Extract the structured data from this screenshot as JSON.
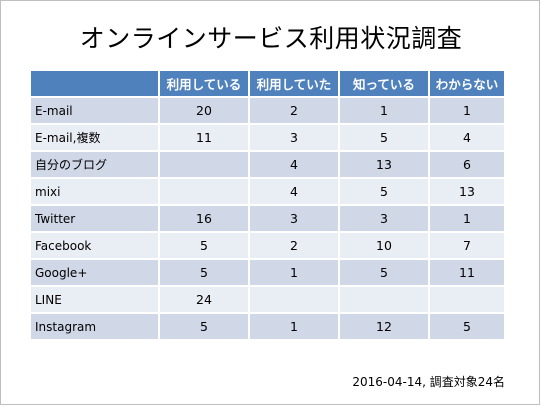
{
  "title": "オンラインサービス利用状況調査",
  "table": {
    "headers": [
      "",
      "利用している",
      "利用していた",
      "知っている",
      "わからない"
    ],
    "rows": [
      {
        "label": "E-mail",
        "cells": [
          "20",
          "2",
          "1",
          "1"
        ]
      },
      {
        "label": "E-mail,複数",
        "cells": [
          "11",
          "3",
          "5",
          "4"
        ]
      },
      {
        "label": "自分のブログ",
        "cells": [
          "",
          "4",
          "13",
          "6"
        ]
      },
      {
        "label": "mixi",
        "cells": [
          "",
          "4",
          "5",
          "13"
        ]
      },
      {
        "label": "Twitter",
        "cells": [
          "16",
          "3",
          "3",
          "1"
        ]
      },
      {
        "label": "Facebook",
        "cells": [
          "5",
          "2",
          "10",
          "7"
        ]
      },
      {
        "label": "Google+",
        "cells": [
          "5",
          "1",
          "5",
          "11"
        ]
      },
      {
        "label": "LINE",
        "cells": [
          "24",
          "",
          "",
          ""
        ]
      },
      {
        "label": "Instagram",
        "cells": [
          "5",
          "1",
          "12",
          "5"
        ]
      }
    ]
  },
  "footer": "2016-04-14,  調査対象24名",
  "colors": {
    "header": "#4f81bd",
    "row_odd": "#d0d8e8",
    "row_even": "#e9edf4"
  }
}
